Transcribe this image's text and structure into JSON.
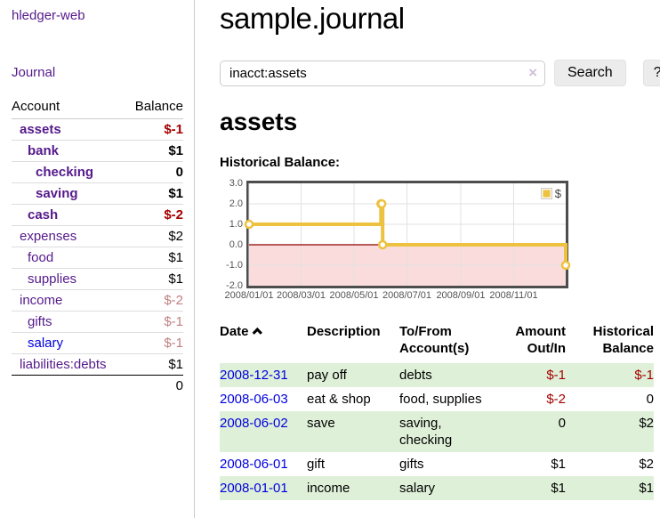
{
  "colors": {
    "purple_link": "#551a8b",
    "blue_link": "#0000e0",
    "negative_strong": "#a40000",
    "negative_muted": "#c08080",
    "stripe_green": "#dff0d8",
    "series_gold": "#edc240"
  },
  "sidebar": {
    "brand": "hledger-web",
    "nav": {
      "journal": "Journal"
    },
    "table": {
      "account_header": "Account",
      "balance_header": "Balance"
    },
    "rows": [
      {
        "name": "assets",
        "balance": "$-1",
        "depth": 1,
        "bold": true,
        "neg": "strong",
        "link": "purple"
      },
      {
        "name": "bank",
        "balance": "$1",
        "depth": 2,
        "bold": true,
        "neg": "",
        "link": "purple"
      },
      {
        "name": "checking",
        "balance": "0",
        "depth": 3,
        "bold": true,
        "neg": "",
        "link": "purple"
      },
      {
        "name": "saving",
        "balance": "$1",
        "depth": 3,
        "bold": true,
        "neg": "",
        "link": "purple"
      },
      {
        "name": "cash",
        "balance": "$-2",
        "depth": 2,
        "bold": true,
        "neg": "strong",
        "link": "purple"
      },
      {
        "name": "expenses",
        "balance": "$2",
        "depth": 1,
        "bold": false,
        "neg": "",
        "link": "purple"
      },
      {
        "name": "food",
        "balance": "$1",
        "depth": 2,
        "bold": false,
        "neg": "",
        "link": "purple"
      },
      {
        "name": "supplies",
        "balance": "$1",
        "depth": 2,
        "bold": false,
        "neg": "",
        "link": "purple"
      },
      {
        "name": "income",
        "balance": "$-2",
        "depth": 1,
        "bold": false,
        "neg": "muted",
        "link": "purple"
      },
      {
        "name": "gifts",
        "balance": "$-1",
        "depth": 2,
        "bold": false,
        "neg": "muted",
        "link": "purple"
      },
      {
        "name": "salary",
        "balance": "$-1",
        "depth": 2,
        "bold": false,
        "neg": "muted",
        "link": "blue"
      },
      {
        "name": "liabilities:debts",
        "balance": "$1",
        "depth": 1,
        "bold": false,
        "neg": "",
        "link": "purple"
      }
    ],
    "total": "0"
  },
  "main": {
    "title": "sample.journal",
    "search": {
      "value": "inacct:assets",
      "clear_icon": "×",
      "search_button": "Search",
      "help_button": "?"
    },
    "account_heading": "assets",
    "chart_heading": "Historical Balance:"
  },
  "chart_data": {
    "type": "line",
    "title": "Historical Balance:",
    "step": true,
    "xlim": [
      "2008-01-01",
      "2008-12-31"
    ],
    "ylim": [
      -2,
      3
    ],
    "y_ticks": [
      "3.0",
      "2.0",
      "1.0",
      "0.0",
      "-1.0",
      "-2.0"
    ],
    "x_ticks": [
      "2008/01/01",
      "2008/03/01",
      "2008/05/01",
      "2008/07/01",
      "2008/09/01",
      "2008/11/01"
    ],
    "grid": true,
    "legend_position": "top-right",
    "series": [
      {
        "name": "$",
        "color": "#edc240",
        "points": [
          [
            "2008-01-01",
            1
          ],
          [
            "2008-06-01",
            2
          ],
          [
            "2008-06-02",
            2
          ],
          [
            "2008-06-03",
            0
          ],
          [
            "2008-12-31",
            -1
          ]
        ]
      }
    ],
    "style": {
      "negative_region_fill": "#fbdcdc",
      "zero_line": "#8b0000",
      "gridline": "#e2e2e2",
      "border": "#4d4d4d",
      "tick_text": "#545454"
    }
  },
  "register": {
    "headers": [
      "Date",
      "Description",
      "To/From Account(s)",
      "Amount Out/In",
      "Historical Balance"
    ],
    "sort_icon": "chevron-up",
    "rows": [
      {
        "date": "2008-12-31",
        "description": "pay off",
        "accounts": [
          "debts"
        ],
        "amount": "$-1",
        "amount_negative": true,
        "balance": "$-1",
        "balance_negative": true
      },
      {
        "date": "2008-06-03",
        "description": "eat & shop",
        "accounts": [
          "food, supplies"
        ],
        "amount": "$-2",
        "amount_negative": true,
        "balance": "0",
        "balance_negative": false
      },
      {
        "date": "2008-06-02",
        "description": "save",
        "accounts": [
          "saving,",
          "checking"
        ],
        "amount": "0",
        "amount_negative": false,
        "balance": "$2",
        "balance_negative": false
      },
      {
        "date": "2008-06-01",
        "description": "gift",
        "accounts": [
          "gifts"
        ],
        "amount": "$1",
        "amount_negative": false,
        "balance": "$2",
        "balance_negative": false
      },
      {
        "date": "2008-01-01",
        "description": "income",
        "accounts": [
          "salary"
        ],
        "amount": "$1",
        "amount_negative": false,
        "balance": "$1",
        "balance_negative": false
      }
    ]
  }
}
